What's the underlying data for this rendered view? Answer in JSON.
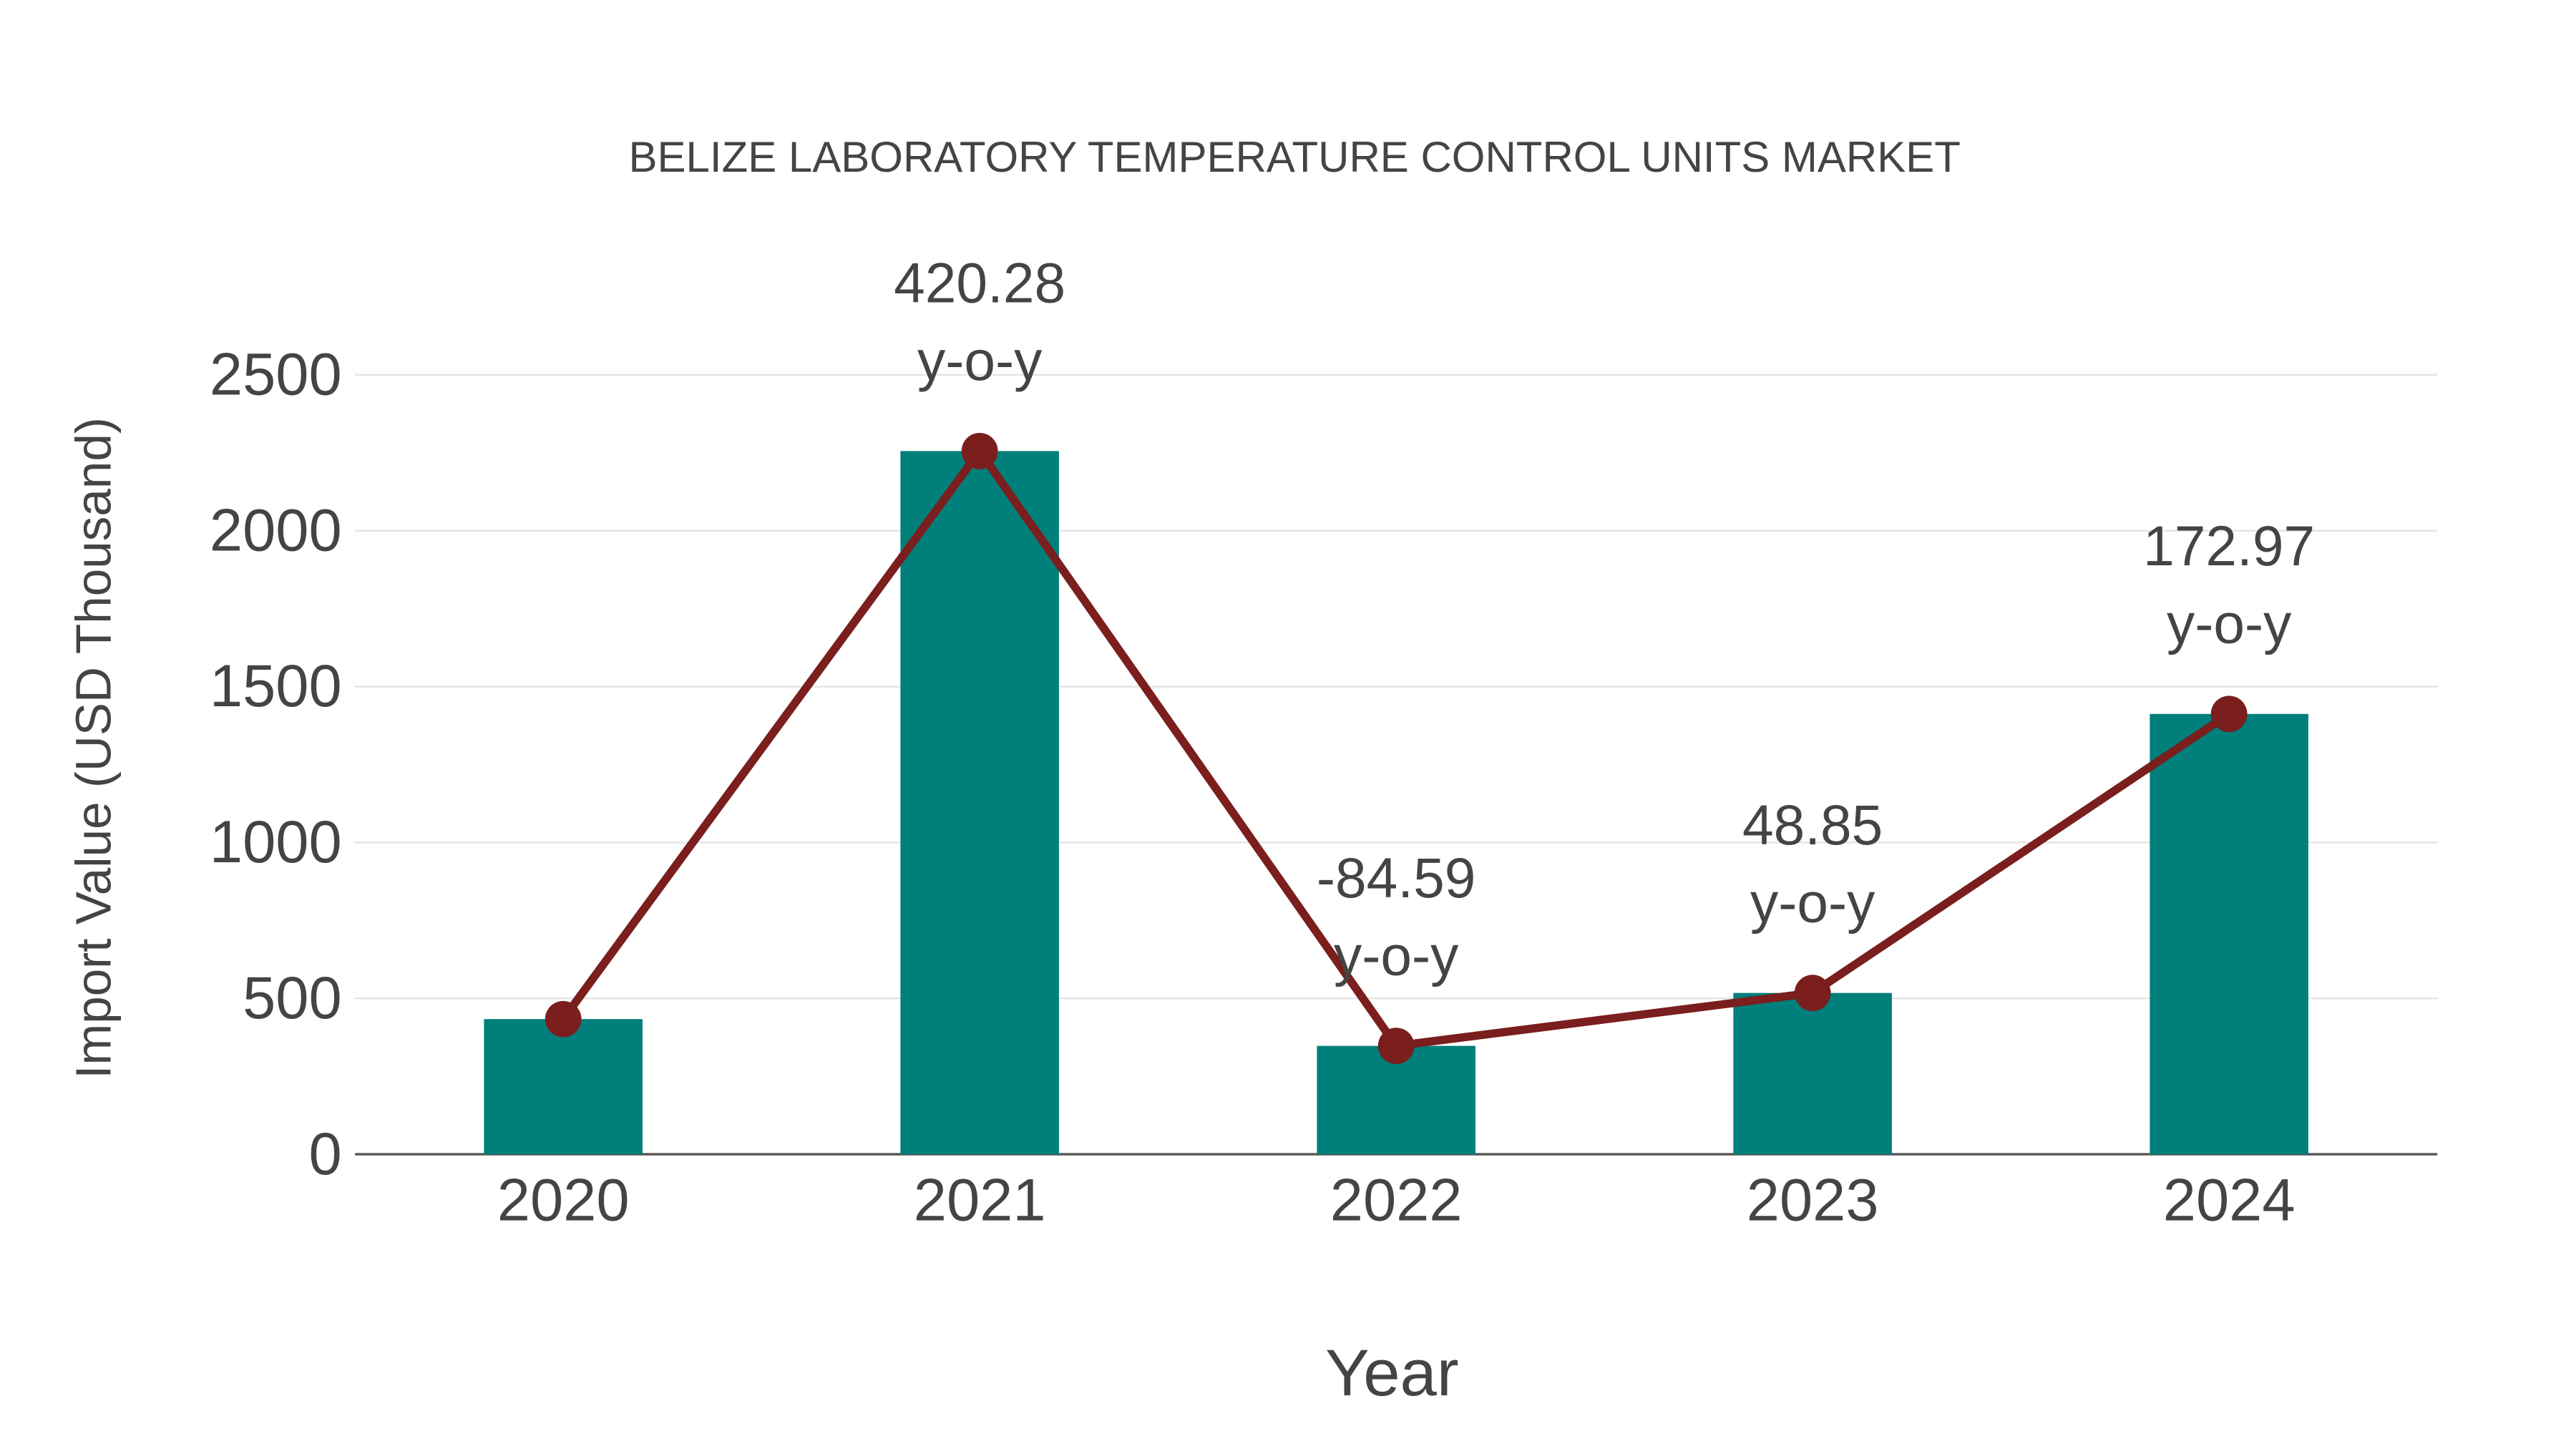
{
  "chart_data": {
    "type": "bar",
    "title": "BELIZE LABORATORY TEMPERATURE CONTROL UNITS MARKET",
    "xlabel": "Year",
    "ylabel": "Import Value (USD Thousand)",
    "categories": [
      "2020",
      "2021",
      "2022",
      "2023",
      "2024"
    ],
    "series": [
      {
        "name": "Import Value",
        "type": "bar",
        "values": [
          433.5,
          2255.5,
          347.6,
          517.4,
          1412.3
        ],
        "color": "#007f7b"
      },
      {
        "name": "Import Value (line)",
        "type": "line",
        "values": [
          433.5,
          2255.5,
          347.6,
          517.4,
          1412.3
        ],
        "color": "#7a1e1e"
      }
    ],
    "annotations": [
      {
        "category": "2021",
        "value": "420.28",
        "suffix": "y-o-y"
      },
      {
        "category": "2022",
        "value": "-84.59",
        "suffix": "y-o-y"
      },
      {
        "category": "2023",
        "value": "48.85",
        "suffix": "y-o-y"
      },
      {
        "category": "2024",
        "value": "172.97",
        "suffix": "y-o-y"
      }
    ],
    "yticks": [
      "0",
      "500",
      "1000",
      "1500",
      "2000",
      "2500"
    ],
    "ylim": [
      0,
      2500
    ],
    "grid": true,
    "legend": "none"
  }
}
